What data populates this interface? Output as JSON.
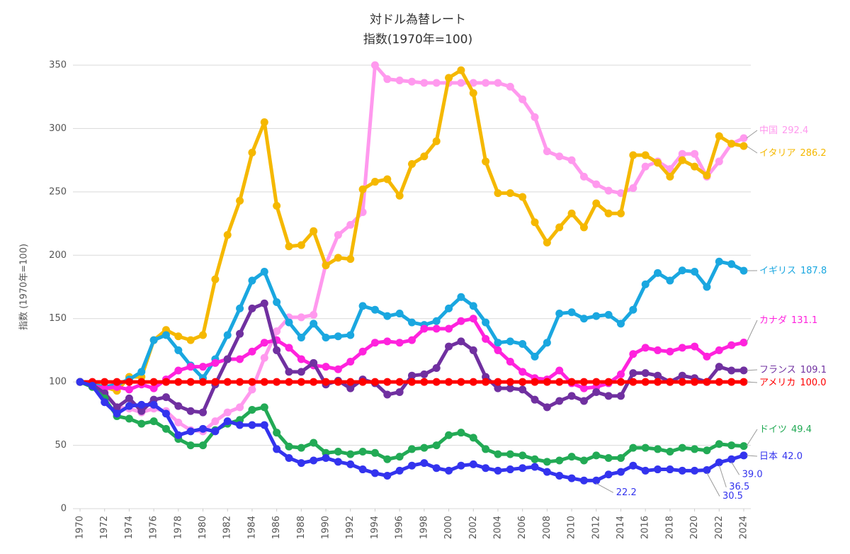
{
  "chart_data": {
    "type": "line",
    "title": "対ドル為替レート",
    "subtitle": "指数(1970年=100)",
    "y_label": "指数 (1970年=100)",
    "xlim": [
      1970,
      2024
    ],
    "xticks": [
      1970,
      1972,
      1974,
      1976,
      1978,
      1980,
      1982,
      1984,
      1986,
      1988,
      1990,
      1992,
      1994,
      1996,
      1998,
      2000,
      2002,
      2004,
      2006,
      2008,
      2010,
      2012,
      2014,
      2016,
      2018,
      2020,
      2022,
      2024
    ],
    "ylim": [
      0,
      350
    ],
    "yticks": [
      0,
      50,
      100,
      150,
      200,
      250,
      300,
      350
    ],
    "grid": true,
    "x": [
      1970,
      1971,
      1972,
      1973,
      1974,
      1975,
      1976,
      1977,
      1978,
      1979,
      1980,
      1981,
      1982,
      1983,
      1984,
      1985,
      1986,
      1987,
      1988,
      1989,
      1990,
      1991,
      1992,
      1993,
      1994,
      1995,
      1996,
      1997,
      1998,
      1999,
      2000,
      2001,
      2002,
      2003,
      2004,
      2005,
      2006,
      2007,
      2008,
      2009,
      2010,
      2011,
      2012,
      2013,
      2014,
      2015,
      2016,
      2017,
      2018,
      2019,
      2020,
      2021,
      2022,
      2023,
      2024
    ],
    "series": [
      {
        "name": "中国",
        "color": "#ff99ee",
        "values": [
          100,
          100,
          92,
          80,
          79,
          76,
          79,
          77,
          68,
          62,
          61,
          69,
          76,
          80,
          94,
          119,
          140,
          151,
          151,
          153,
          193,
          216,
          224,
          234,
          350,
          339,
          338,
          337,
          336,
          336,
          336,
          336,
          336,
          336,
          336,
          333,
          323,
          309,
          282,
          278,
          275,
          262,
          256,
          251,
          249,
          253,
          270,
          274,
          268,
          280,
          280,
          262,
          274,
          288,
          292.4
        ],
        "value_labels": [
          null,
          null,
          null,
          null,
          null,
          null,
          null,
          null,
          null,
          null,
          null,
          null,
          null,
          null,
          null,
          null,
          null,
          null,
          null,
          null,
          null,
          null,
          null,
          null,
          null,
          null,
          null,
          null,
          null,
          null,
          null,
          null,
          null,
          null,
          null,
          null,
          null,
          null,
          null,
          null,
          null,
          null,
          null,
          null,
          null,
          null,
          null,
          null,
          null,
          null,
          null,
          null,
          null,
          null,
          "292.4"
        ]
      },
      {
        "name": "イタリア",
        "color": "#f5b800",
        "values": [
          100,
          99,
          96,
          93,
          104,
          104,
          133,
          141,
          136,
          133,
          137,
          181,
          216,
          243,
          281,
          305,
          239,
          207,
          208,
          219,
          192,
          198,
          197,
          252,
          258,
          260,
          247,
          272,
          278,
          290,
          340,
          346,
          328,
          274,
          249,
          249,
          246,
          226,
          210,
          222,
          233,
          222,
          241,
          233,
          233,
          279,
          279,
          273,
          262,
          275,
          270,
          263,
          294,
          288,
          286.2
        ],
        "value_labels": [
          null,
          null,
          null,
          null,
          null,
          null,
          null,
          null,
          null,
          null,
          null,
          null,
          null,
          null,
          null,
          null,
          null,
          null,
          null,
          null,
          null,
          null,
          null,
          null,
          null,
          null,
          null,
          null,
          null,
          null,
          null,
          null,
          null,
          null,
          null,
          null,
          null,
          null,
          null,
          null,
          null,
          null,
          null,
          null,
          null,
          null,
          null,
          null,
          null,
          null,
          null,
          null,
          null,
          null,
          "286.2"
        ]
      },
      {
        "name": "イギリス",
        "color": "#1aa7e0",
        "values": [
          100,
          98,
          96,
          98,
          102,
          108,
          133,
          137,
          125,
          113,
          103,
          118,
          137,
          158,
          180,
          187,
          163,
          147,
          135,
          146,
          135,
          136,
          137,
          160,
          157,
          152,
          154,
          147,
          145,
          148,
          158,
          167,
          160,
          147,
          131,
          132,
          130,
          120,
          131,
          154,
          155,
          150,
          152,
          153,
          146,
          157,
          177,
          186,
          180,
          188,
          187,
          175,
          195,
          193,
          187.8
        ],
        "value_labels": [
          null,
          null,
          null,
          null,
          null,
          null,
          null,
          null,
          null,
          null,
          null,
          null,
          null,
          null,
          null,
          null,
          null,
          null,
          null,
          null,
          null,
          null,
          null,
          null,
          null,
          null,
          null,
          null,
          null,
          null,
          null,
          null,
          null,
          null,
          null,
          null,
          null,
          null,
          null,
          null,
          null,
          null,
          null,
          null,
          null,
          null,
          null,
          null,
          null,
          null,
          null,
          null,
          null,
          null,
          "187.8"
        ]
      },
      {
        "name": "カナダ",
        "color": "#ff22dd",
        "values": [
          100,
          97,
          95,
          96,
          94,
          98,
          95,
          102,
          109,
          112,
          112,
          115,
          118,
          118,
          124,
          131,
          133,
          127,
          118,
          113,
          112,
          110,
          116,
          124,
          131,
          132,
          131,
          133,
          142,
          142,
          142,
          148,
          150,
          134,
          125,
          116,
          108,
          103,
          102,
          109,
          99,
          95,
          96,
          99,
          106,
          122,
          127,
          125,
          124,
          127,
          128,
          120,
          125,
          129,
          131.1
        ],
        "value_labels": [
          null,
          null,
          null,
          null,
          null,
          null,
          null,
          null,
          null,
          null,
          null,
          null,
          null,
          null,
          null,
          null,
          null,
          null,
          null,
          null,
          null,
          null,
          null,
          null,
          null,
          null,
          null,
          null,
          null,
          null,
          null,
          null,
          null,
          null,
          null,
          null,
          null,
          null,
          null,
          null,
          null,
          null,
          null,
          null,
          null,
          null,
          null,
          null,
          null,
          null,
          null,
          null,
          null,
          null,
          "131.1"
        ]
      },
      {
        "name": "フランス",
        "color": "#7030a0",
        "values": [
          100,
          98,
          91,
          80,
          87,
          77,
          86,
          88,
          81,
          77,
          76,
          98,
          118,
          138,
          158,
          162,
          125,
          108,
          108,
          115,
          98,
          101,
          95,
          102,
          99,
          90,
          92,
          105,
          106,
          111,
          128,
          132,
          125,
          104,
          95,
          95,
          94,
          86,
          80,
          85,
          89,
          85,
          92,
          89,
          89,
          107,
          107,
          105,
          100,
          105,
          103,
          100,
          112,
          109,
          109.1
        ],
        "value_labels": [
          null,
          null,
          null,
          null,
          null,
          null,
          null,
          null,
          null,
          null,
          null,
          null,
          null,
          null,
          null,
          null,
          null,
          null,
          null,
          null,
          null,
          null,
          null,
          null,
          null,
          null,
          null,
          null,
          null,
          null,
          null,
          null,
          null,
          null,
          null,
          null,
          null,
          null,
          null,
          null,
          null,
          null,
          null,
          null,
          null,
          null,
          null,
          null,
          null,
          null,
          null,
          null,
          null,
          null,
          "109.1"
        ]
      },
      {
        "name": "アメリカ",
        "color": "#ff0000",
        "values": [
          100,
          100,
          100,
          100,
          100,
          100,
          100,
          100,
          100,
          100,
          100,
          100,
          100,
          100,
          100,
          100,
          100,
          100,
          100,
          100,
          100,
          100,
          100,
          100,
          100,
          100,
          100,
          100,
          100,
          100,
          100,
          100,
          100,
          100,
          100,
          100,
          100,
          100,
          100,
          100,
          100,
          100,
          100,
          100,
          100,
          100,
          100,
          100,
          100,
          100,
          100,
          100,
          100,
          100,
          100
        ],
        "value_labels": [
          null,
          null,
          null,
          null,
          null,
          null,
          null,
          null,
          null,
          null,
          null,
          null,
          null,
          null,
          null,
          null,
          null,
          null,
          null,
          null,
          null,
          null,
          null,
          null,
          null,
          null,
          null,
          null,
          null,
          null,
          null,
          null,
          null,
          null,
          null,
          null,
          null,
          null,
          null,
          null,
          null,
          null,
          null,
          null,
          null,
          null,
          null,
          null,
          null,
          null,
          null,
          null,
          null,
          null,
          "100.0"
        ]
      },
      {
        "name": "ドイツ",
        "color": "#22aa55",
        "values": [
          100,
          96,
          87,
          73,
          71,
          67,
          69,
          63,
          55,
          50,
          50,
          62,
          67,
          70,
          78,
          80,
          60,
          49,
          48,
          52,
          44,
          45,
          43,
          45,
          44,
          39,
          41,
          47,
          48,
          50,
          58,
          60,
          56,
          47,
          43,
          43,
          42,
          39,
          37,
          38,
          41,
          38,
          42,
          40,
          40,
          48,
          48,
          47,
          45,
          48,
          47,
          46,
          51,
          50,
          49.4
        ],
        "value_labels": [
          null,
          null,
          null,
          null,
          null,
          null,
          null,
          null,
          null,
          null,
          null,
          null,
          null,
          null,
          null,
          null,
          null,
          null,
          null,
          null,
          null,
          null,
          null,
          null,
          null,
          null,
          null,
          null,
          null,
          null,
          null,
          null,
          null,
          null,
          null,
          null,
          null,
          null,
          null,
          null,
          null,
          null,
          null,
          null,
          null,
          null,
          null,
          null,
          null,
          null,
          null,
          null,
          null,
          null,
          "49.4"
        ]
      },
      {
        "name": "日本",
        "color": "#3333ee",
        "values": [
          100,
          97,
          84,
          75,
          81,
          82,
          82,
          75,
          58,
          61,
          63,
          61,
          69,
          66,
          66,
          66,
          47,
          40,
          36,
          38,
          40,
          37,
          35,
          31,
          28,
          26,
          30,
          34,
          36,
          32,
          30,
          34,
          35,
          32,
          30,
          31,
          32,
          33,
          29,
          26,
          24,
          22.2,
          22.2,
          27,
          29,
          34,
          30,
          31,
          31,
          30,
          30,
          30.5,
          36.5,
          39,
          42
        ],
        "value_labels": [
          null,
          null,
          null,
          null,
          null,
          null,
          null,
          null,
          null,
          null,
          null,
          null,
          null,
          null,
          null,
          null,
          null,
          null,
          null,
          null,
          null,
          null,
          null,
          null,
          null,
          null,
          null,
          null,
          null,
          null,
          null,
          null,
          null,
          null,
          null,
          null,
          null,
          null,
          null,
          null,
          null,
          null,
          "22.2",
          null,
          null,
          null,
          null,
          null,
          null,
          null,
          null,
          "30.5",
          "36.5",
          "39.0",
          "42.0"
        ]
      }
    ]
  }
}
